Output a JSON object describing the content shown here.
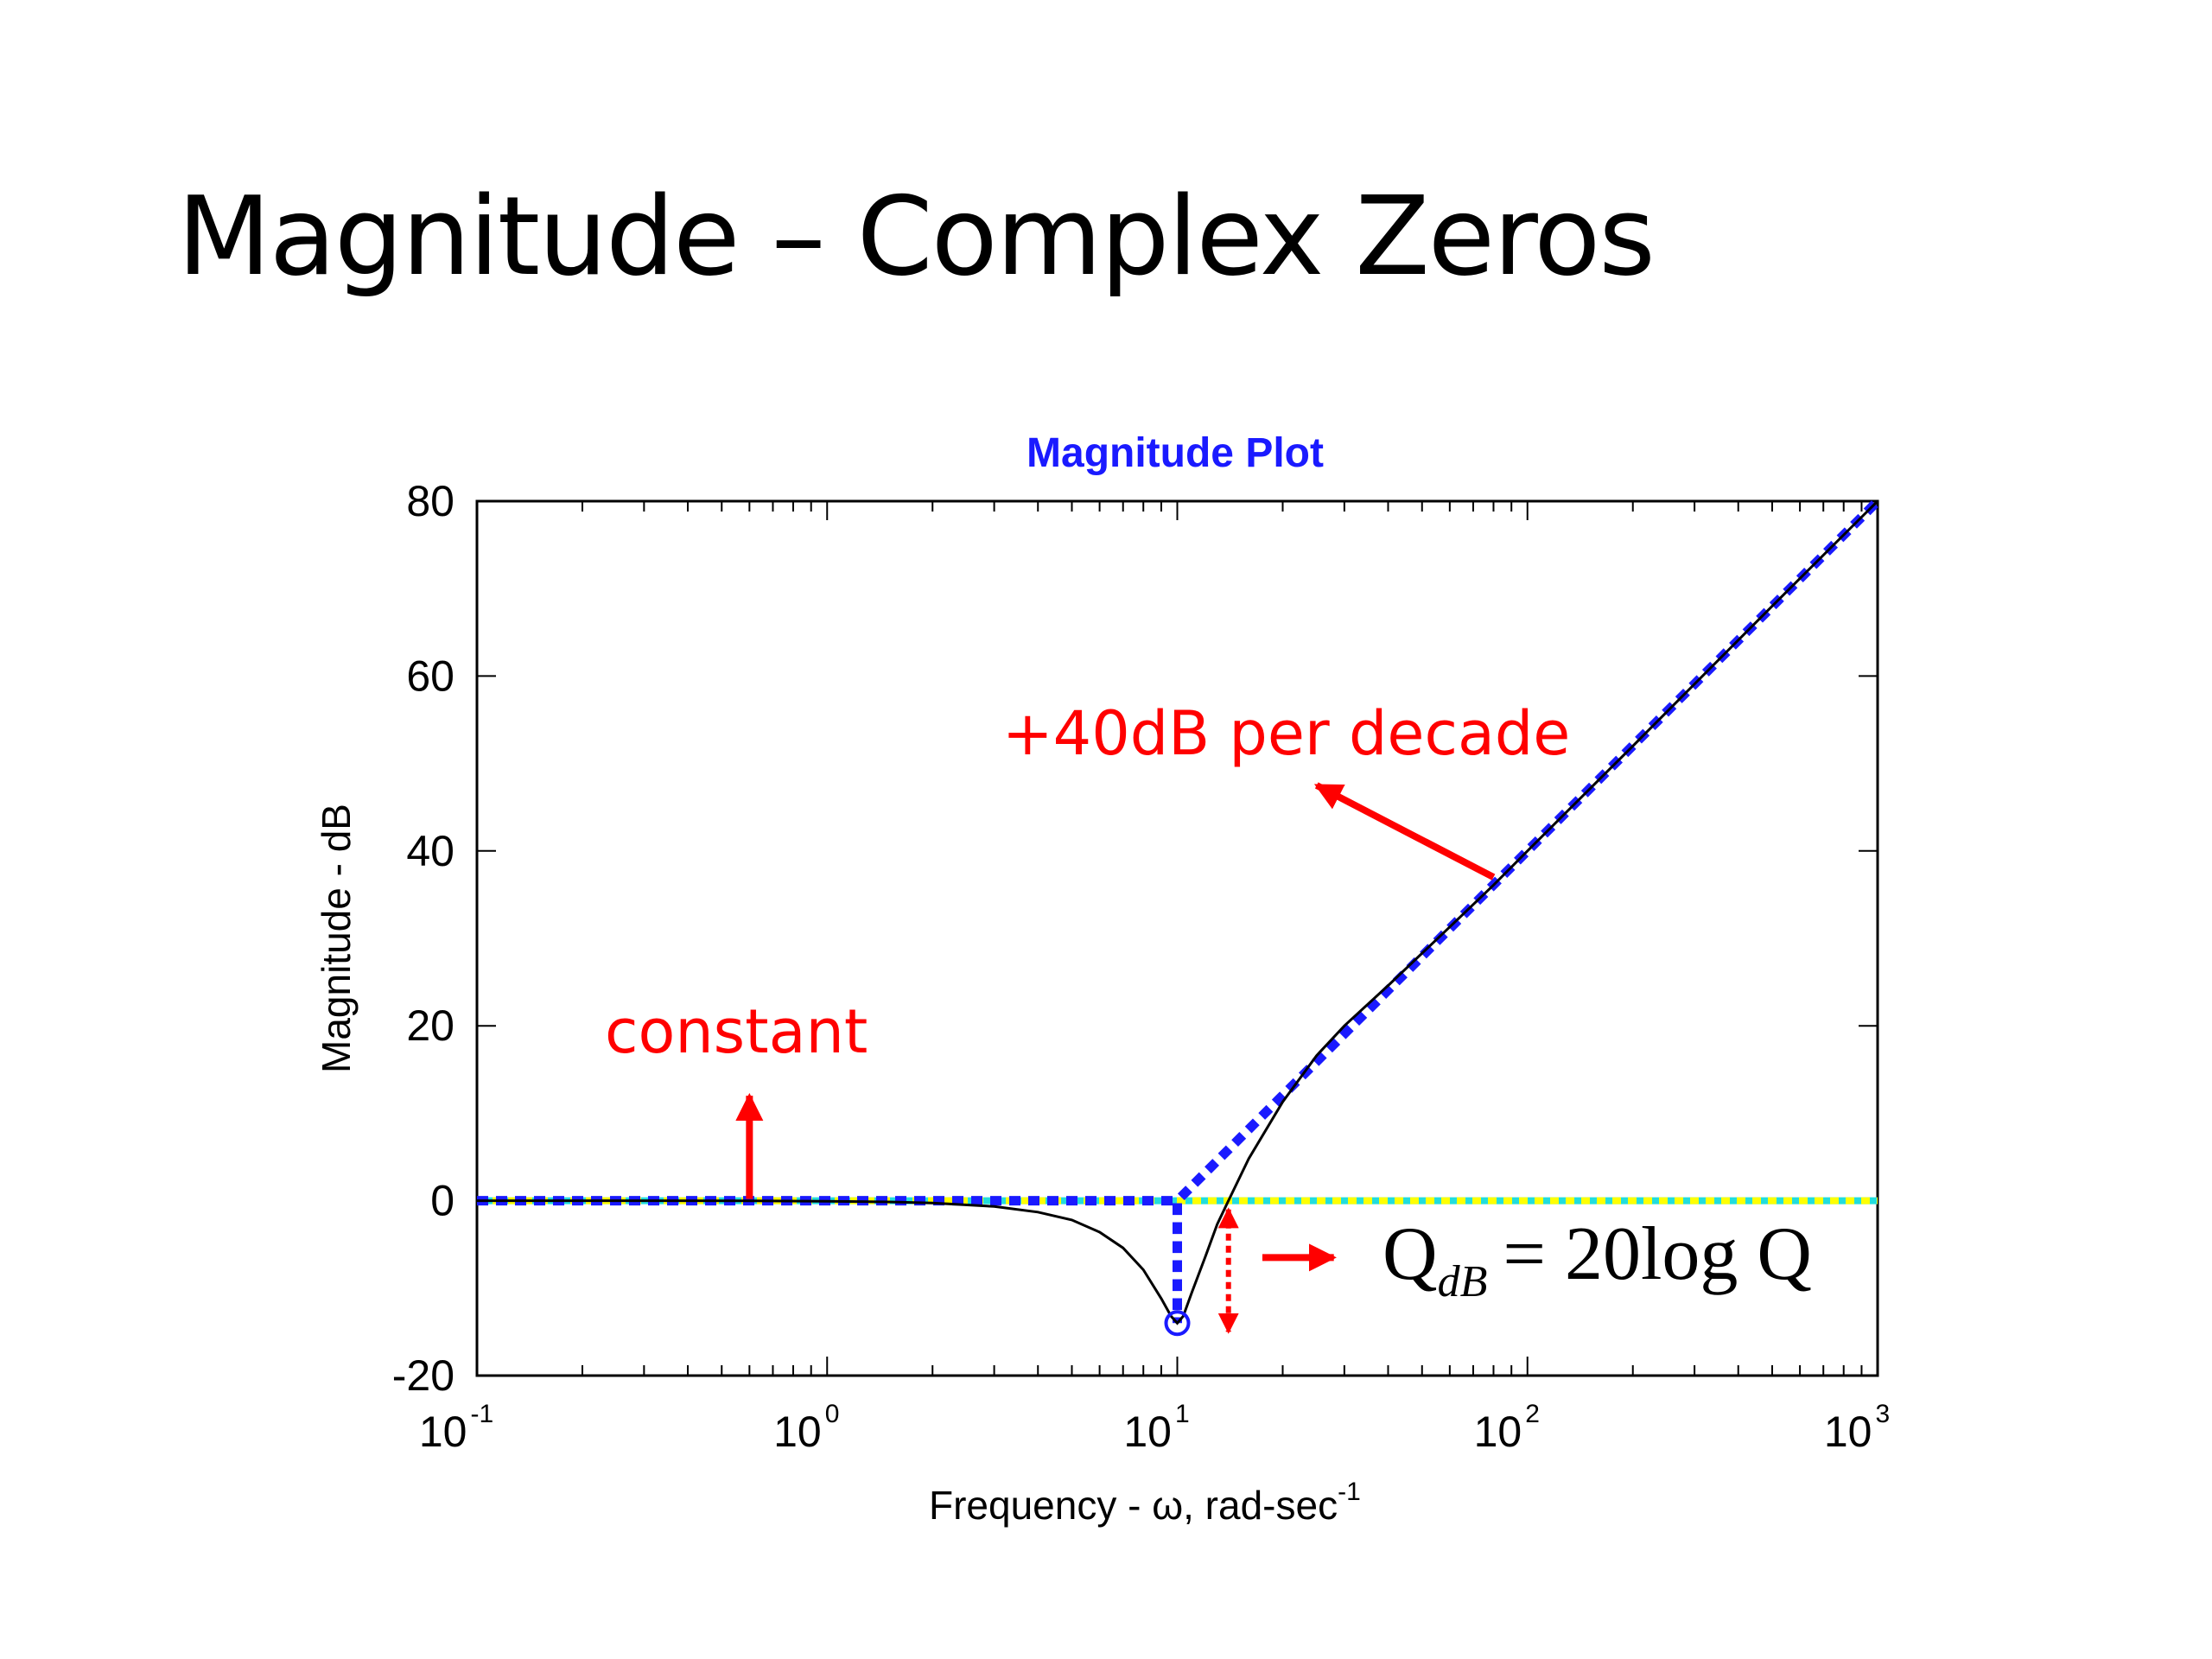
{
  "slide": {
    "title": "Magnitude – Complex Zeros"
  },
  "chart_data": {
    "type": "line",
    "title": "Magnitude Plot",
    "xlabel": "Frequency - ω, rad-sec",
    "xlabel_superscript": "-1",
    "ylabel": "Magnitude - dB",
    "xscale": "log",
    "xlim": [
      0.1,
      1000
    ],
    "ylim": [
      -20,
      80
    ],
    "yticks": [
      -20,
      0,
      20,
      40,
      60,
      80
    ],
    "xticks": [
      {
        "base": "10",
        "exp": "-1",
        "value": 0.1
      },
      {
        "base": "10",
        "exp": "0",
        "value": 1
      },
      {
        "base": "10",
        "exp": "1",
        "value": 10
      },
      {
        "base": "10",
        "exp": "2",
        "value": 100
      },
      {
        "base": "10",
        "exp": "3",
        "value": 1000
      }
    ],
    "grid": false,
    "series": [
      {
        "name": "",
        "style": "solid",
        "color": "#000000",
        "points": [
          [
            0.1,
            0
          ],
          [
            0.3,
            0
          ],
          [
            0.6,
            -0.02
          ],
          [
            1,
            -0.06
          ],
          [
            1.5,
            -0.14
          ],
          [
            2,
            -0.27
          ],
          [
            3,
            -0.66
          ],
          [
            4,
            -1.3
          ],
          [
            5,
            -2.2
          ],
          [
            6,
            -3.6
          ],
          [
            7,
            -5.4
          ],
          [
            8,
            -7.9
          ],
          [
            9,
            -11.2
          ],
          [
            9.6,
            -13.2
          ],
          [
            10,
            -14
          ],
          [
            10.4,
            -13.2
          ],
          [
            11,
            -10.5
          ],
          [
            12,
            -6.5
          ],
          [
            13,
            -2.7
          ],
          [
            14,
            0
          ],
          [
            16,
            4.8
          ],
          [
            20,
            11.3
          ],
          [
            25,
            16.6
          ],
          [
            30,
            20.0
          ],
          [
            40,
            24.6
          ],
          [
            60,
            31.3
          ],
          [
            80,
            36.1
          ],
          [
            100,
            40
          ],
          [
            200,
            52.0
          ],
          [
            500,
            68.0
          ],
          [
            1000,
            80
          ]
        ]
      },
      {
        "name": "",
        "style": "dashed",
        "color": "#1a1aff",
        "points": [
          [
            0.1,
            0
          ],
          [
            10,
            0
          ],
          [
            10,
            -14
          ],
          [
            10,
            0
          ],
          [
            1000,
            80
          ]
        ]
      },
      {
        "name": "",
        "style": "dashed",
        "color": "#ffff00",
        "points": [
          [
            0.1,
            0
          ],
          [
            1000,
            0
          ]
        ]
      }
    ],
    "marker": {
      "x": 10,
      "y": -14,
      "shape": "circle",
      "color": "#1a1aff"
    },
    "annotations": [
      {
        "text": "constant",
        "color": "#ff0000"
      },
      {
        "text": "+40dB per decade",
        "color": "#ff0000"
      }
    ],
    "formula": {
      "q": "Q",
      "sub": "dB",
      "rhs": "= 20log Q"
    }
  },
  "colors": {
    "accent_red": "#ff0000",
    "asymptote_blue": "#1a1aff",
    "zero_line_yellow": "#ffff00",
    "zero_line_cyan": "#22dddd"
  }
}
